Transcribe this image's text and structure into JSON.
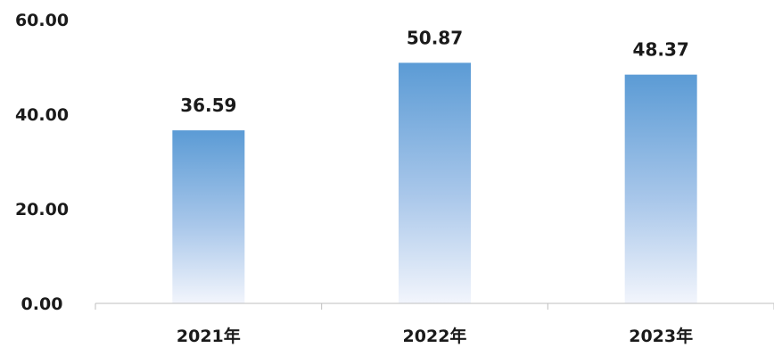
{
  "chart_data": {
    "type": "bar",
    "categories": [
      "2021年",
      "2022年",
      "2023年"
    ],
    "values": [
      36.59,
      50.87,
      48.37
    ],
    "value_labels": [
      "36.59",
      "50.87",
      "48.37"
    ],
    "ylim": [
      0,
      60
    ],
    "y_ticks": [
      0,
      20,
      40,
      60
    ],
    "y_tick_labels": [
      "0.00",
      "20.00",
      "40.00",
      "60.00"
    ],
    "grid": false,
    "legend": "none",
    "bar_color_top": "#5b9bd5",
    "bar_color_bottom": "#f2f5fc"
  }
}
